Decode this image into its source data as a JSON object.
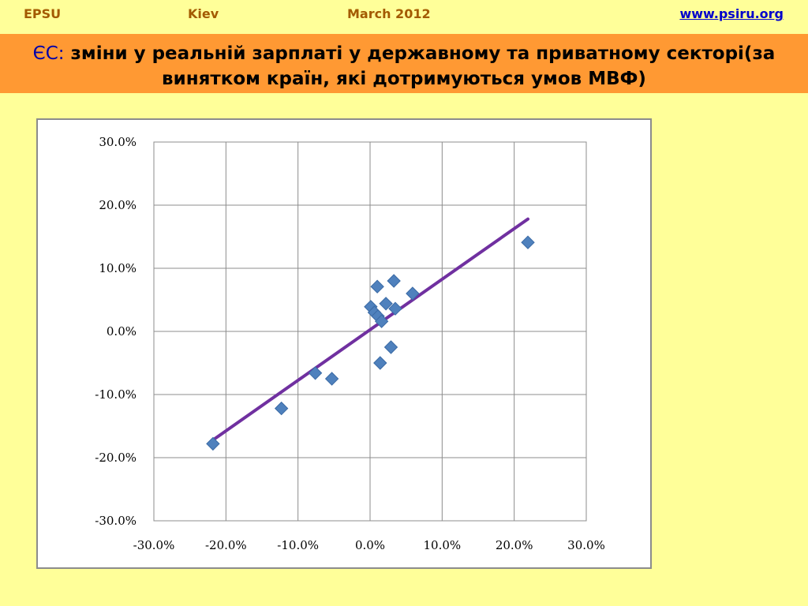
{
  "header": {
    "org": "EPSU",
    "city": "Kiev",
    "date": "March 2012",
    "url": "www.psiru.org"
  },
  "title": {
    "lead": "ЄС:",
    "text": "зміни у реальній зарплаті у державному та приватному секторі(за винятком країн, які дотримуються умов МВФ)"
  },
  "colors": {
    "background": "#ffff99",
    "title_bar": "#ff9933",
    "header_text": "#a35a00",
    "link": "#0000cc",
    "marker": "#4f81bd",
    "trendline": "#7030a0"
  },
  "chart_data": {
    "type": "scatter",
    "title": "",
    "xlabel": "",
    "ylabel": "",
    "xlim": [
      -30,
      30
    ],
    "ylim": [
      -30,
      30
    ],
    "x_ticks": [
      "-30.0%",
      "-20.0%",
      "-10.0%",
      "0.0%",
      "10.0%",
      "20.0%",
      "30.0%"
    ],
    "y_ticks": [
      "30.0%",
      "20.0%",
      "10.0%",
      "0.0%",
      "-10.0%",
      "-20.0%",
      "-30.0%"
    ],
    "grid": true,
    "legend": "none",
    "marker": "diamond",
    "points": [
      {
        "x": -21.8,
        "y": -17.8
      },
      {
        "x": -12.3,
        "y": -12.2
      },
      {
        "x": -7.6,
        "y": -6.6
      },
      {
        "x": -5.3,
        "y": -7.5
      },
      {
        "x": 0.1,
        "y": 3.9
      },
      {
        "x": 0.6,
        "y": 3.0
      },
      {
        "x": 1.0,
        "y": 7.1
      },
      {
        "x": 1.1,
        "y": 2.4
      },
      {
        "x": 1.4,
        "y": -5.0
      },
      {
        "x": 1.6,
        "y": 1.6
      },
      {
        "x": 2.2,
        "y": 4.4
      },
      {
        "x": 2.9,
        "y": -2.5
      },
      {
        "x": 3.3,
        "y": 8.0
      },
      {
        "x": 3.5,
        "y": 3.6
      },
      {
        "x": 5.9,
        "y": 6.0
      },
      {
        "x": 21.9,
        "y": 14.1
      }
    ],
    "trendline": {
      "x": [
        -21.8,
        21.9
      ],
      "y": [
        -17.2,
        17.8
      ]
    }
  }
}
